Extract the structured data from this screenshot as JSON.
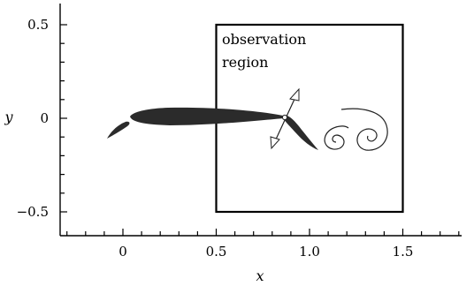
{
  "figure": {
    "axes": {
      "x_label": "x",
      "y_label": "y",
      "x_range": [
        -0.33,
        1.85
      ],
      "y_range": [
        -0.6,
        0.62
      ],
      "x_ticks": [
        {
          "value": 0,
          "label": "0"
        },
        {
          "value": 0.5,
          "label": "0.5"
        },
        {
          "value": 1.0,
          "label": "1.0"
        },
        {
          "value": 1.5,
          "label": "1.5"
        }
      ],
      "y_ticks": [
        {
          "value": 0.5,
          "label": "0.5"
        },
        {
          "value": 0,
          "label": "0"
        },
        {
          "value": -0.5,
          "label": "−0.5"
        }
      ],
      "x_minor_step": 0.1,
      "y_minor_step": 0.1,
      "grid": false
    },
    "observation_region": {
      "label_line1": "observation",
      "label_line2": "region",
      "x_min": 0.5,
      "x_max": 1.5,
      "y_min": -0.5,
      "y_max": 0.5
    },
    "colors": {
      "foil": "#2b2b2b",
      "axes": "#000000",
      "vortex": "#222222",
      "arrow": "#666666"
    },
    "icons": [
      "upstream-foil-icon",
      "main-foil-icon",
      "flapping-foil-icon",
      "double-arrow-icon",
      "wake-vortex-icon"
    ]
  }
}
